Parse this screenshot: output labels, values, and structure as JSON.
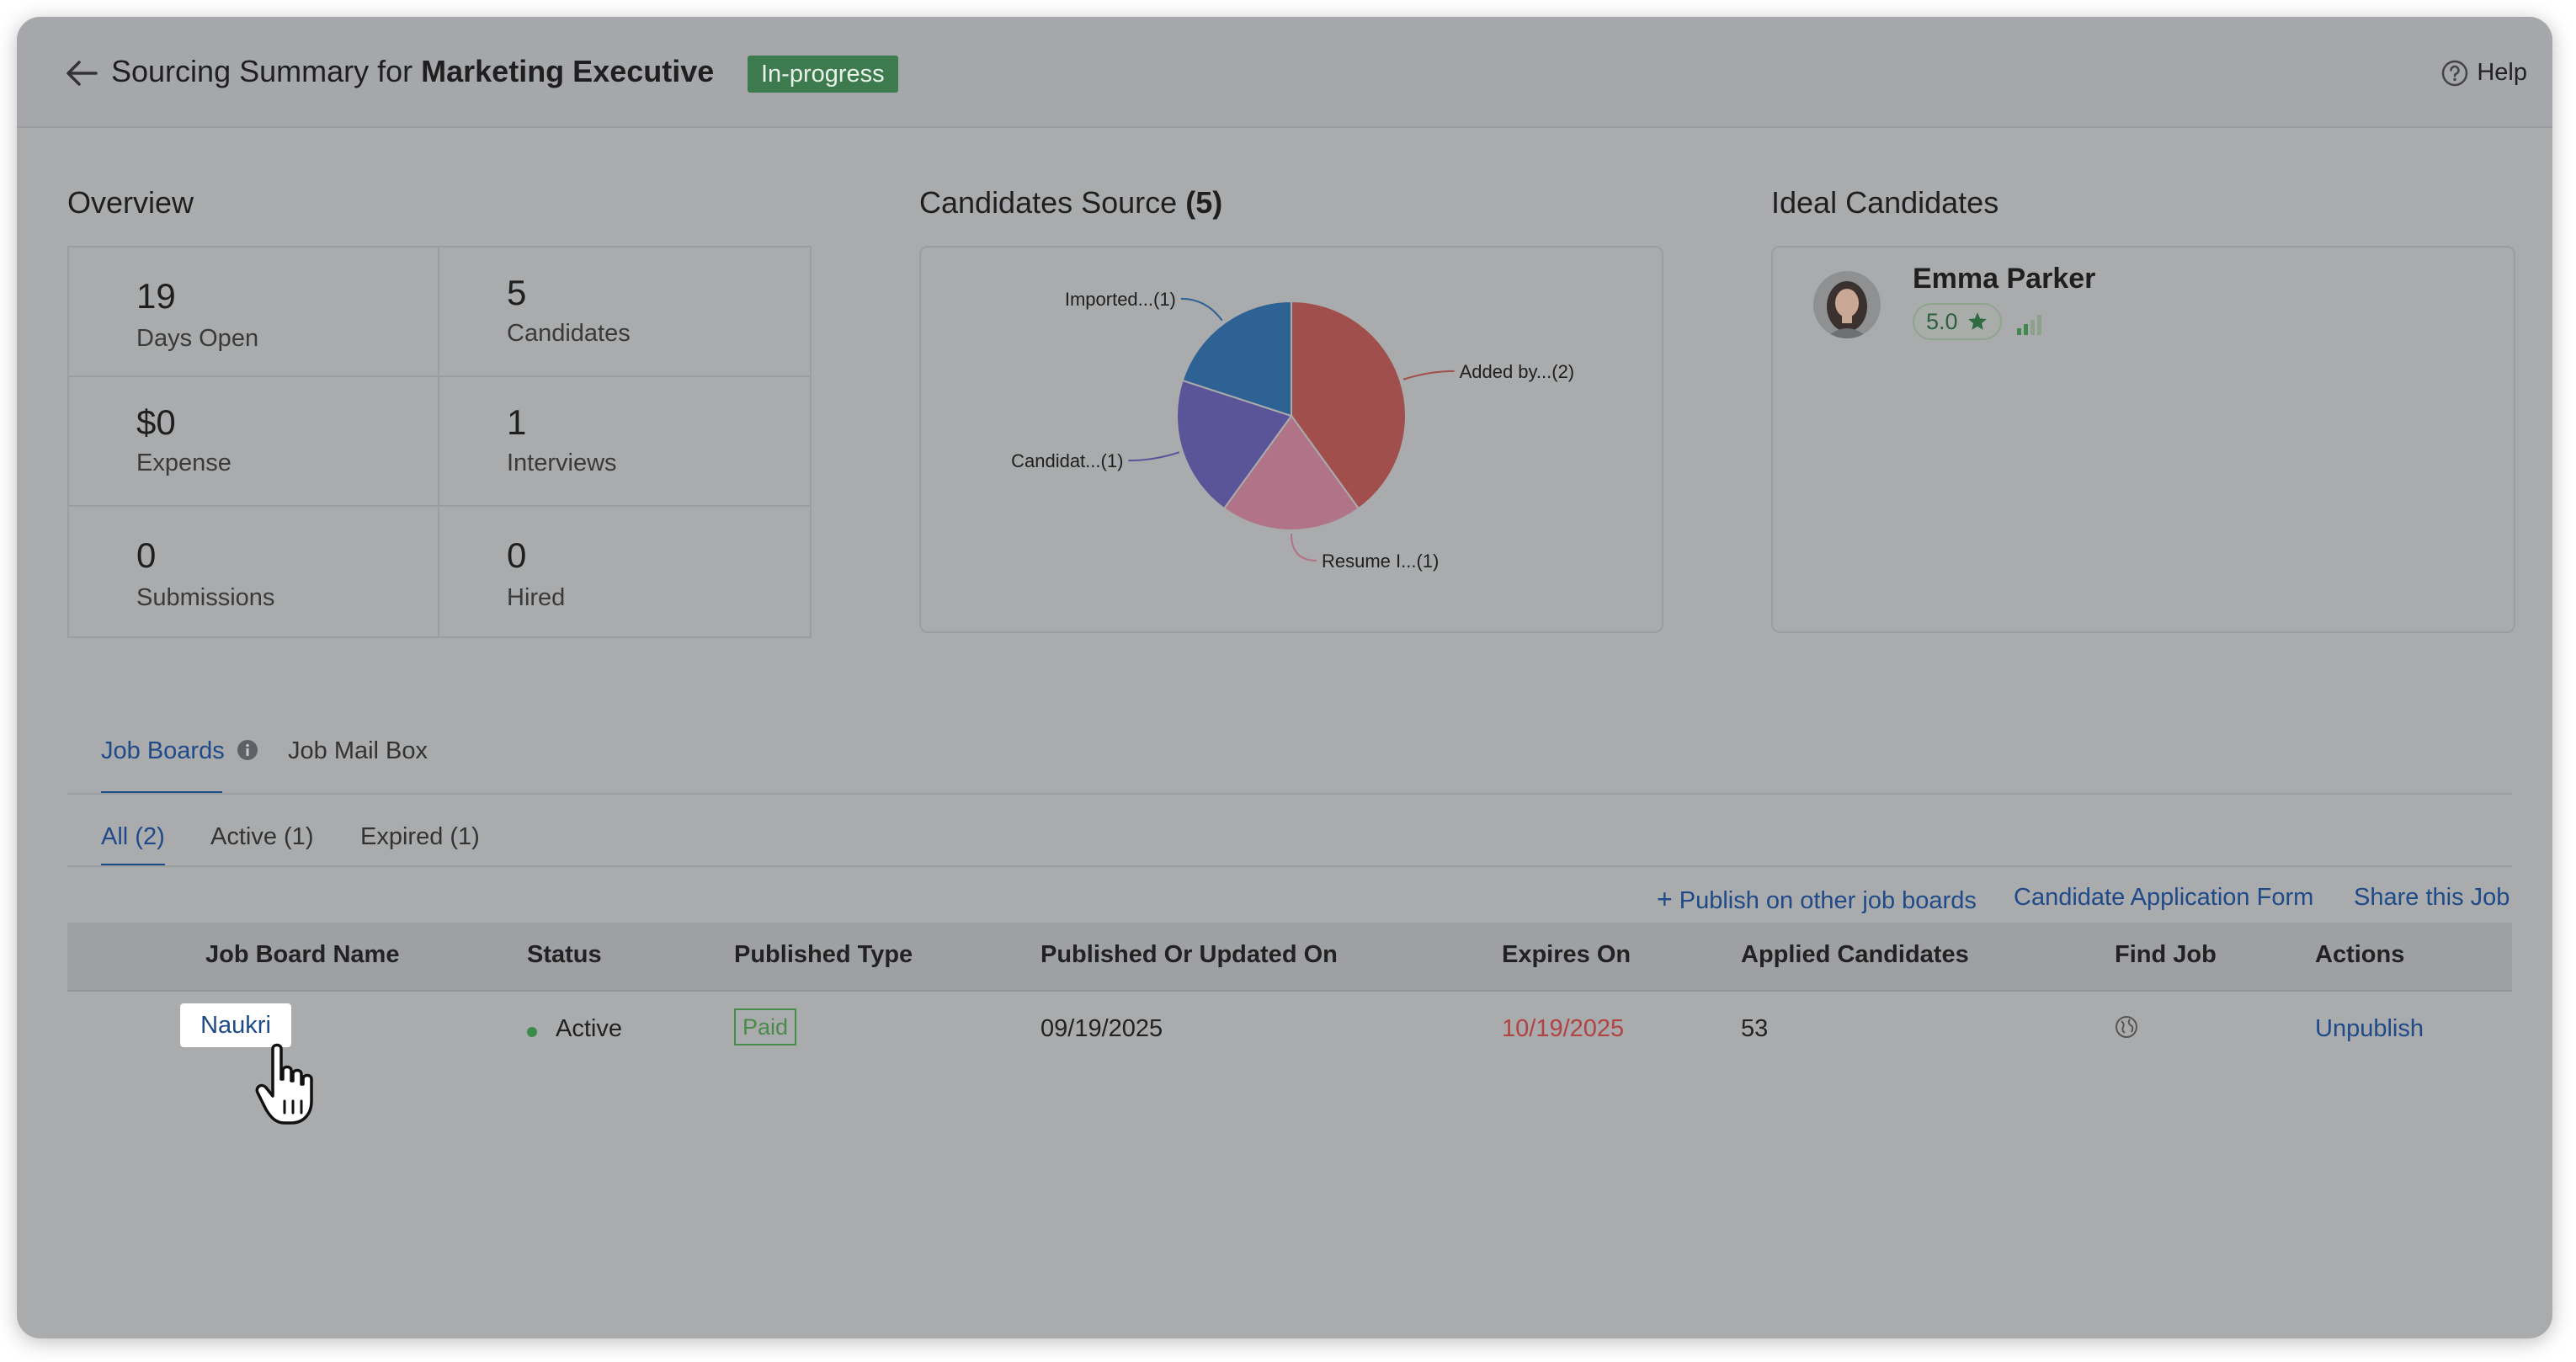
{
  "header": {
    "title_prefix": "Sourcing Summary for",
    "title_job": "Marketing Executive",
    "status_badge": "In-progress",
    "help_label": "Help"
  },
  "overview": {
    "title": "Overview",
    "stats": [
      {
        "value": "19",
        "label": "Days Open"
      },
      {
        "value": "5",
        "label": "Candidates"
      },
      {
        "value": "$0",
        "label": "Expense"
      },
      {
        "value": "1",
        "label": "Interviews"
      },
      {
        "value": "0",
        "label": "Submissions"
      },
      {
        "value": "0",
        "label": "Hired"
      }
    ]
  },
  "candidates_source": {
    "title": "Candidates Source",
    "count": "(5)"
  },
  "chart_data": {
    "type": "pie",
    "title": "Candidates Source (5)",
    "slices": [
      {
        "label": "Added by...(2)",
        "value": 2,
        "color": "#a14f4c"
      },
      {
        "label": "Resume I...(1)",
        "value": 1,
        "color": "#b07388"
      },
      {
        "label": "Candidat...(1)",
        "value": 1,
        "color": "#5a5599"
      },
      {
        "label": "Imported...(1)",
        "value": 1,
        "color": "#2f6294"
      }
    ]
  },
  "ideal_candidates": {
    "title": "Ideal Candidates",
    "name": "Emma Parker",
    "rating": "5.0"
  },
  "tabs": {
    "job_boards": "Job Boards",
    "job_mail_box": "Job Mail Box"
  },
  "subtabs": {
    "all": "All (2)",
    "active": "Active (1)",
    "expired": "Expired (1)"
  },
  "actions": {
    "publish": "Publish on other job boards",
    "application_form": "Candidate Application Form",
    "share": "Share this Job"
  },
  "table": {
    "columns": [
      "Job Board Name",
      "Status",
      "Published Type",
      "Published Or Updated On",
      "Expires On",
      "Applied Candidates",
      "Find Job",
      "Actions"
    ],
    "rows": [
      {
        "name": "Naukri",
        "status": "Active",
        "type": "Paid",
        "published_on": "09/19/2025",
        "expires_on": "10/19/2025",
        "applied": "53",
        "action": "Unpublish"
      }
    ]
  },
  "colors": {
    "accent": "#1e4a8a",
    "status_badge_bg": "#3d7a4e",
    "expired_date": "#b04444",
    "active_dot": "#3a8a4c"
  }
}
